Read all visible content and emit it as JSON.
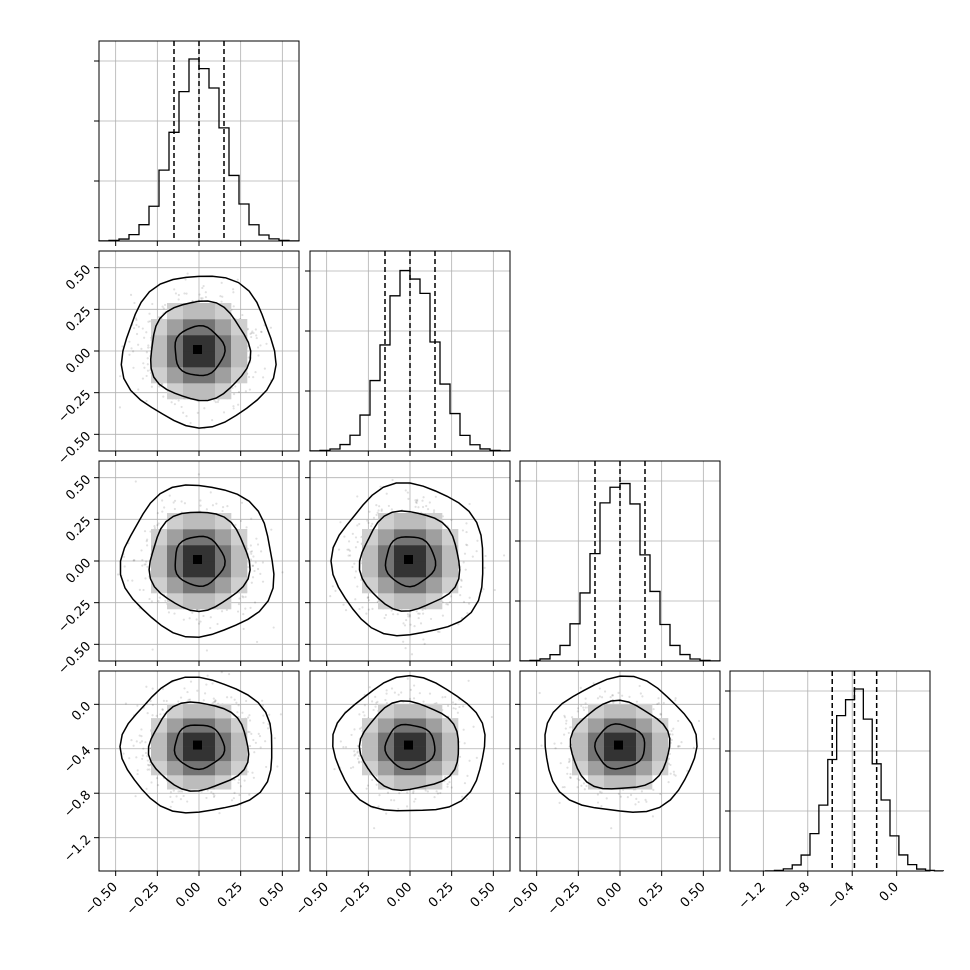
{
  "chart_data": {
    "type": "corner",
    "n_params": 4,
    "grid": true,
    "params": [
      {
        "index": 0,
        "range": [
          -0.6,
          0.6
        ],
        "ticks": [
          -0.5,
          -0.25,
          0.0,
          0.25,
          0.5
        ],
        "tick_labels": [
          "−0.50",
          "−0.25",
          "0.00",
          "0.25",
          "0.50"
        ],
        "mean": 0.0,
        "sd": 0.15,
        "quantiles": [
          -0.15,
          0.0,
          0.15
        ]
      },
      {
        "index": 1,
        "range": [
          -0.6,
          0.6
        ],
        "ticks": [
          -0.5,
          -0.25,
          0.0,
          0.25,
          0.5
        ],
        "tick_labels": [
          "−0.50",
          "−0.25",
          "0.00",
          "0.25",
          "0.50"
        ],
        "mean": 0.0,
        "sd": 0.15,
        "quantiles": [
          -0.15,
          0.0,
          0.15
        ]
      },
      {
        "index": 2,
        "range": [
          -0.6,
          0.6
        ],
        "ticks": [
          -0.5,
          -0.25,
          0.0,
          0.25,
          0.5
        ],
        "tick_labels": [
          "−0.50",
          "−0.25",
          "0.00",
          "0.25",
          "0.50"
        ],
        "mean": 0.0,
        "sd": 0.15,
        "quantiles": [
          -0.15,
          0.0,
          0.15
        ]
      },
      {
        "index": 3,
        "range": [
          -1.5,
          0.3
        ],
        "ticks": [
          -1.2,
          -0.8,
          -0.4,
          0.0
        ],
        "tick_labels": [
          "−1.2",
          "−0.8",
          "−0.4",
          "0.0"
        ],
        "mean": -0.38,
        "sd": 0.2,
        "quantiles": [
          -0.58,
          -0.38,
          -0.18
        ]
      }
    ],
    "hist_bins": 20,
    "contour_levels": [
      0.39,
      0.86,
      0.99
    ]
  }
}
